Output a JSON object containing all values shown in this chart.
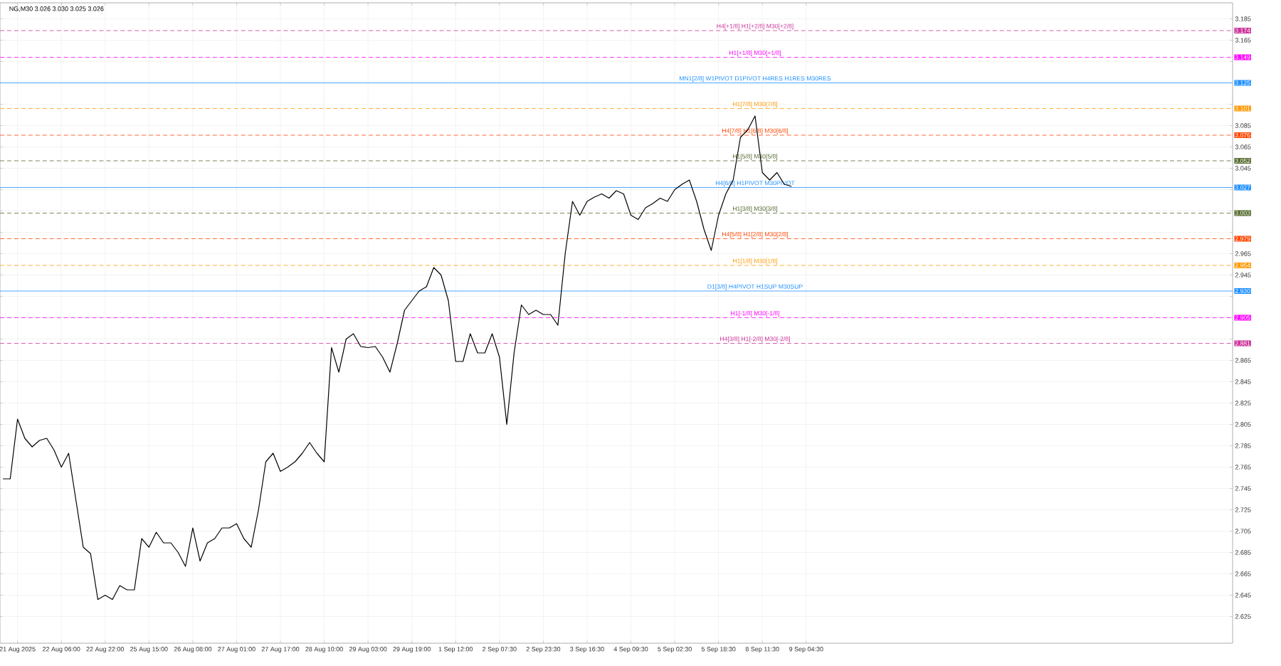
{
  "chart_data": {
    "type": "line",
    "title": "NG,M30  3.026 3.030 3.025 3.026",
    "categories": [
      null,
      null,
      "21 Aug 2025",
      null,
      null,
      null,
      null,
      null,
      "22 Aug 06:00",
      null,
      null,
      null,
      null,
      null,
      "22 Aug 22:00",
      null,
      null,
      null,
      null,
      null,
      "25 Aug 15:00",
      null,
      null,
      null,
      null,
      null,
      "26 Aug 08:00",
      null,
      null,
      null,
      null,
      null,
      "27 Aug 01:00",
      null,
      null,
      null,
      null,
      null,
      "27 Aug 17:00",
      null,
      null,
      null,
      null,
      null,
      "28 Aug 10:00",
      null,
      null,
      null,
      null,
      null,
      "29 Aug 03:00",
      null,
      null,
      null,
      null,
      null,
      "29 Aug 19:00",
      null,
      null,
      null,
      null,
      null,
      "1 Sep 12:00",
      null,
      null,
      null,
      null,
      null,
      "2 Sep 07:30",
      null,
      null,
      null,
      null,
      null,
      "2 Sep 23:30",
      null,
      null,
      null,
      null,
      null,
      "3 Sep 16:30",
      null,
      null,
      null,
      null,
      null,
      "4 Sep 09:30",
      null,
      null,
      null,
      null,
      null,
      "5 Sep 02:30",
      null,
      null,
      null,
      null,
      null,
      "5 Sep 18:30",
      null,
      null,
      null,
      null,
      null,
      "8 Sep 11:30",
      null,
      null,
      null,
      null,
      null,
      "9 Sep 04:30",
      null,
      null,
      null,
      null,
      null,
      null,
      null,
      null,
      null,
      null,
      null,
      null,
      null,
      null,
      null,
      null,
      null,
      null,
      null,
      null,
      null,
      null,
      null,
      null,
      null,
      null,
      null,
      null,
      null,
      null,
      null,
      null,
      null,
      null,
      null,
      null,
      null,
      null,
      null,
      null,
      null,
      null,
      null,
      null,
      null,
      null,
      null,
      null,
      null,
      null,
      null,
      null,
      null,
      null,
      null,
      null,
      null,
      null
    ],
    "values": [
      2.754,
      2.754,
      2.81,
      2.792,
      2.784,
      2.79,
      2.792,
      2.781,
      2.765,
      2.778,
      2.734,
      2.69,
      2.684,
      2.641,
      2.645,
      2.641,
      2.654,
      2.65,
      2.65,
      2.698,
      2.69,
      2.704,
      2.694,
      2.694,
      2.685,
      2.672,
      2.708,
      2.677,
      2.694,
      2.698,
      2.708,
      2.708,
      2.712,
      2.698,
      2.69,
      2.725,
      2.77,
      2.778,
      2.761,
      2.765,
      2.77,
      2.778,
      2.788,
      2.778,
      2.77,
      2.877,
      2.854,
      2.885,
      2.89,
      2.878,
      2.877,
      2.878,
      2.868,
      2.854,
      2.881,
      2.912,
      2.921,
      2.93,
      2.934,
      2.952,
      2.945,
      2.921,
      2.864,
      2.864,
      2.89,
      2.872,
      2.872,
      2.89,
      2.868,
      2.805,
      2.872,
      2.917,
      2.908,
      2.912,
      2.908,
      2.908,
      2.898,
      2.965,
      3.014,
      3.001,
      3.014,
      3.018,
      3.021,
      3.017,
      3.024,
      3.021,
      3.001,
      2.997,
      3.008,
      3.012,
      3.017,
      3.014,
      3.025,
      3.03,
      3.034,
      3.014,
      2.988,
      2.968,
      3.001,
      3.021,
      3.034,
      3.074,
      3.081,
      3.094,
      3.041,
      3.034,
      3.041,
      3.03,
      3.028,
      null,
      null,
      null,
      null,
      null,
      null,
      null,
      null,
      null,
      null,
      null,
      null,
      null,
      null,
      null,
      null,
      null,
      null,
      null,
      null,
      null,
      null,
      null,
      null,
      null,
      null,
      null,
      null,
      null,
      null,
      null,
      null,
      null,
      null,
      null,
      null,
      null,
      null,
      null,
      null,
      null,
      null,
      null,
      null,
      null,
      null,
      null,
      null,
      null,
      null,
      null,
      null,
      null,
      null,
      null,
      null,
      null,
      null,
      null,
      null
    ],
    "color": "#000000",
    "marker": "none",
    "line_style": "solid",
    "grid": true,
    "ylim": [
      2.6,
      3.2
    ],
    "yticks": [
      2.625,
      2.645,
      2.665,
      2.685,
      2.705,
      2.725,
      2.745,
      2.765,
      2.785,
      2.805,
      2.825,
      2.845,
      2.865,
      {
        "value": 2.885,
        "label": null
      },
      {
        "value": 2.905,
        "label": null
      },
      {
        "value": 2.925,
        "label": null
      },
      2.945,
      2.965,
      {
        "value": 2.985,
        "label": null
      },
      {
        "value": 3.005,
        "label": null
      },
      {
        "value": 3.025,
        "label": null
      },
      3.045,
      3.065,
      3.085,
      {
        "value": 3.105,
        "label": null
      },
      {
        "value": 3.145,
        "label": null
      },
      3.165,
      3.185
    ],
    "ref_lines": [
      {
        "axis": "y",
        "value": 3.174,
        "label": "3.174",
        "color": "#cc3399",
        "line_style": "dashed"
      },
      {
        "axis": "y",
        "value": 3.149,
        "label": "3.149",
        "color": "#ff00ff",
        "line_style": "dashed"
      },
      {
        "axis": "y",
        "value": 3.125,
        "label": "3.125",
        "color": "#1e90ff",
        "line_style": "solid"
      },
      {
        "axis": "y",
        "value": 3.101,
        "label": "3.101",
        "color": "#ff9900",
        "line_style": "dashed"
      },
      {
        "axis": "y",
        "value": 3.076,
        "label": "3.076",
        "color": "#ff4500",
        "line_style": "dashed"
      },
      {
        "axis": "y",
        "value": 3.052,
        "label": "3.052",
        "color": "#556b2f",
        "line_style": "dashed"
      },
      {
        "axis": "y",
        "value": 3.027,
        "label": "3.027",
        "color": "#1e90ff",
        "line_style": "solid"
      },
      {
        "axis": "y",
        "value": 3.003,
        "label": "3.003",
        "color": "#556b2f",
        "line_style": "dashed"
      },
      {
        "axis": "y",
        "value": 2.979,
        "label": "2.979",
        "color": "#ff4500",
        "line_style": "dashed"
      },
      {
        "axis": "y",
        "value": 2.954,
        "label": "2.954",
        "color": "#ff9900",
        "line_style": "dashed"
      },
      {
        "axis": "y",
        "value": 2.93,
        "label": "2.930",
        "color": "#1e90ff",
        "line_style": "solid"
      },
      {
        "axis": "y",
        "value": 2.905,
        "label": "2.905",
        "color": "#ff00ff",
        "line_style": "dashed"
      },
      {
        "axis": "y",
        "value": 2.881,
        "label": "2.881",
        "color": "#cc3399",
        "line_style": "dashed"
      }
    ],
    "annotations": [
      {
        "text": "H4[+1/8] H1[+2/8] M30[+2/8]",
        "y": 3.174
      },
      {
        "text": "H1[+1/8] M30[+1/8]",
        "y": 3.149
      },
      {
        "text": "MN1[2/8] W1PIVOT D1PIVOT H4RES H1RES M30RES",
        "y": 3.125
      },
      {
        "text": "H1[7/8] M30[7/8]",
        "y": 3.101
      },
      {
        "text": "H4[7/8] H1[6/8] M30[6/8]",
        "y": 3.076
      },
      {
        "text": "H1[5/8] M30[5/8]",
        "y": 3.052
      },
      {
        "text": "H4[6/8] H1PIVOT M30PIVOT",
        "y": 3.027
      },
      {
        "text": "H1[3/8] M30[3/8]",
        "y": 3.003
      },
      {
        "text": "H4[5/8] H1[2/8] M30[2/8]",
        "y": 2.979
      },
      {
        "text": "H1[1/8] M30[1/8]",
        "y": 2.954
      },
      {
        "text": "D1[3/8] H4PIVOT H1SUP M30SUP",
        "y": 2.93
      },
      {
        "text": "H1[-1/8] M30[-1/8]",
        "y": 2.905
      },
      {
        "text": "H4[3/8] H1[-2/8] M30[-2/8]",
        "y": 2.881
      }
    ]
  }
}
